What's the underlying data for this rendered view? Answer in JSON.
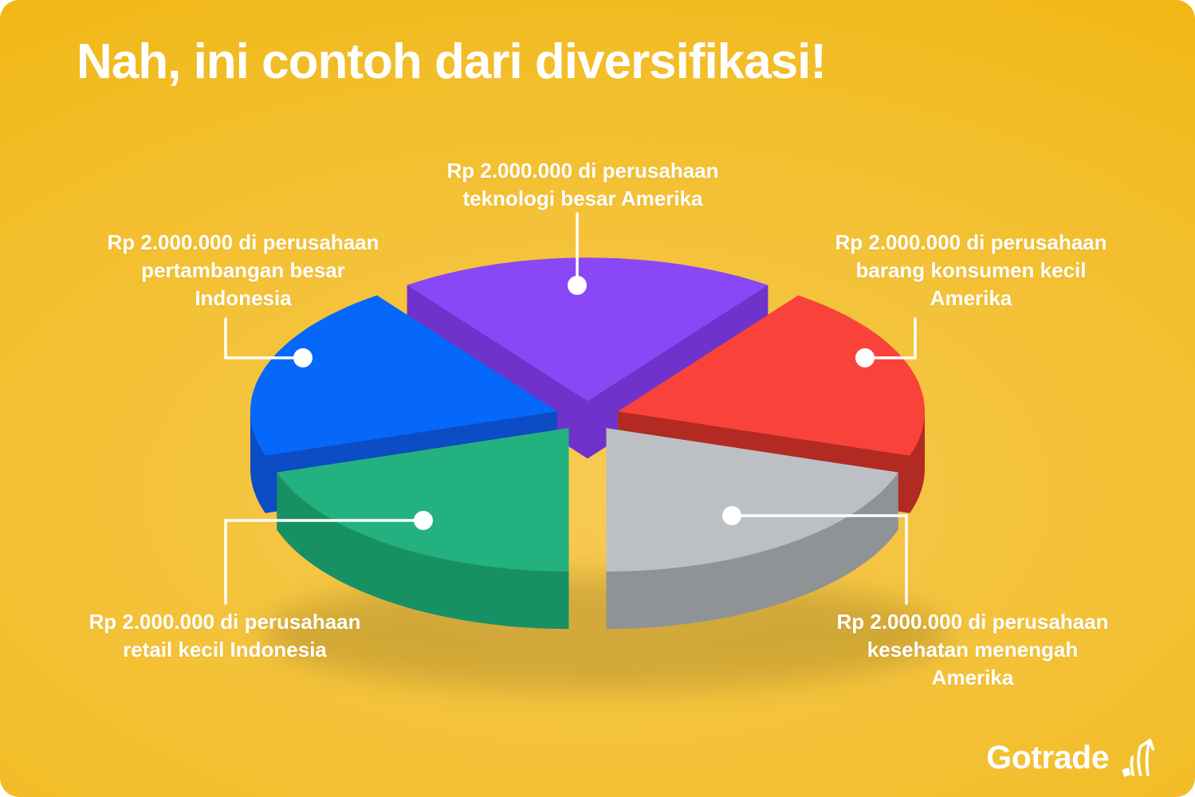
{
  "title": "Nah, ini contoh dari diversifikasi!",
  "brand": {
    "name": "Gotrade"
  },
  "callouts": {
    "top": {
      "target": "teknologi",
      "lines": [
        "Rp 2.000.000 di perusahaan",
        "teknologi besar Amerika"
      ]
    },
    "left": {
      "target": "pertambangan",
      "lines": [
        "Rp 2.000.000 di perusahaan",
        "pertambangan besar",
        "Indonesia"
      ]
    },
    "right": {
      "target": "barang-konsumen",
      "lines": [
        "Rp 2.000.000 di perusahaan",
        "barang konsumen kecil",
        "Amerika"
      ]
    },
    "bottom_left": {
      "target": "retail",
      "lines": [
        "Rp 2.000.000 di perusahaan",
        "retail kecil Indonesia"
      ]
    },
    "bottom_right": {
      "target": "kesehatan",
      "lines": [
        "Rp 2.000.000 di perusahaan",
        "kesehatan menengah",
        "Amerika"
      ]
    }
  },
  "chart_data": {
    "type": "pie",
    "title": "Nah, ini contoh dari diversifikasi!",
    "style": "3d-exploded",
    "legend": "none",
    "labels_style": "callouts-with-leader-lines",
    "slices": [
      {
        "key": "teknologi",
        "label": "Rp 2.000.000 di perusahaan teknologi besar Amerika",
        "value_label": "Rp 2.000.000",
        "value": 2000000,
        "percent": 20,
        "color": "#8a47f5",
        "side_color": "#6f33cc"
      },
      {
        "key": "barang-konsumen",
        "label": "Rp 2.000.000 di perusahaan barang konsumen kecil Amerika",
        "value_label": "Rp 2.000.000",
        "value": 2000000,
        "percent": 20,
        "color": "#f9423a",
        "side_color": "#b32a23"
      },
      {
        "key": "kesehatan",
        "label": "Rp 2.000.000 di perusahaan kesehatan menengah Amerika",
        "value_label": "Rp 2.000.000",
        "value": 2000000,
        "percent": 20,
        "color": "#bcc0c4",
        "side_color": "#8f9396"
      },
      {
        "key": "retail",
        "label": "Rp 2.000.000 di perusahaan retail kecil Indonesia",
        "value_label": "Rp 2.000.000",
        "value": 2000000,
        "percent": 20,
        "color": "#23b27f",
        "side_color": "#179163"
      },
      {
        "key": "pertambangan",
        "label": "Rp 2.000.000 di perusahaan pertambangan besar Indonesia",
        "value_label": "Rp 2.000.000",
        "value": 2000000,
        "percent": 20,
        "color": "#0568fa",
        "side_color": "#0c4cc4"
      }
    ]
  },
  "colors": {
    "background_center": "#f7ca52",
    "background_edge": "#eeb000",
    "text": "#ffffff"
  }
}
